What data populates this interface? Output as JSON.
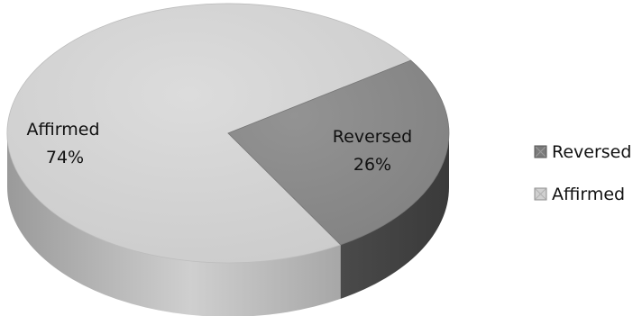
{
  "chart_data": {
    "type": "pie",
    "title": "",
    "slices": [
      {
        "label": "Reversed",
        "percent_label": "26%",
        "value": 26,
        "color": "#8c8c8c"
      },
      {
        "label": "Affirmed",
        "percent_label": "74%",
        "value": 74,
        "color": "#d4d4d4"
      }
    ],
    "legend": {
      "position": "right",
      "entries": [
        "Reversed",
        "Affirmed"
      ]
    },
    "style": "3d-tilted"
  }
}
